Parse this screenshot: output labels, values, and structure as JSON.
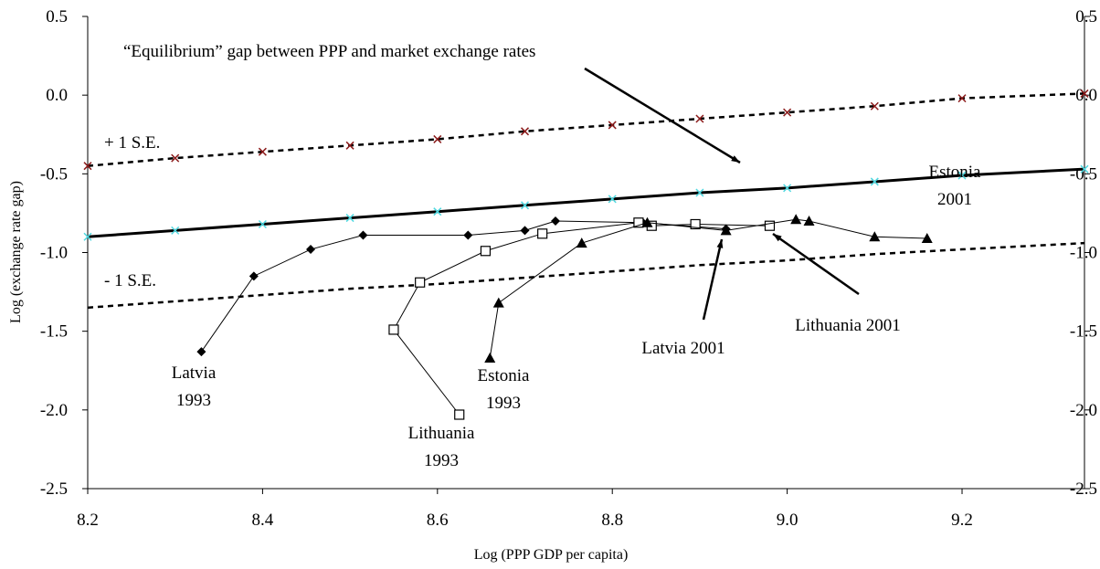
{
  "chart_data": {
    "type": "line",
    "xlabel": "Log (PPP GDP per capita)",
    "ylabel": "Log  (exchange rate gap)",
    "xlim": [
      8.2,
      9.34
    ],
    "ylim": [
      -2.5,
      0.5
    ],
    "xticks": [
      8.2,
      8.4,
      8.6,
      8.8,
      {
        "value": 9.0,
        "label": "9.0"
      },
      9.2
    ],
    "yticks": [
      0.5,
      {
        "value": 0,
        "label": "0.0"
      },
      -0.5,
      {
        "value": -1,
        "label": "-1.0"
      },
      -1.5,
      {
        "value": -2,
        "label": "-2.0"
      },
      -2.5
    ],
    "series": [
      {
        "x": [
          8.2,
          8.3,
          8.4,
          8.5,
          8.6,
          8.7,
          8.8,
          8.9,
          9.0,
          9.1,
          9.2,
          9.34
        ],
        "values": [
          -0.45,
          -0.4,
          -0.36,
          -0.32,
          -0.28,
          -0.23,
          -0.19,
          -0.15,
          -0.11,
          -0.07,
          -0.02,
          0.01
        ],
        "color": "#000000",
        "marker": "x",
        "marker_color": "#8b1a1a",
        "dash": true,
        "width": 2.5
      },
      {
        "x": [
          8.2,
          8.3,
          8.4,
          8.5,
          8.6,
          8.7,
          8.8,
          8.9,
          9.0,
          9.1,
          9.2,
          9.34
        ],
        "values": [
          -0.9,
          -0.86,
          -0.82,
          -0.78,
          -0.74,
          -0.7,
          -0.66,
          -0.62,
          -0.59,
          -0.55,
          -0.51,
          -0.47
        ],
        "color": "#000000",
        "marker": "x",
        "marker_color": "#4fd8e0",
        "dash": false,
        "width": 3
      },
      {
        "x": [
          8.2,
          8.3,
          8.4,
          8.5,
          8.6,
          8.7,
          8.8,
          8.9,
          9.0,
          9.1,
          9.2,
          9.34
        ],
        "values": [
          -1.35,
          -1.31,
          -1.27,
          -1.23,
          -1.2,
          -1.16,
          -1.12,
          -1.08,
          -1.05,
          -1.01,
          -0.98,
          -0.94
        ],
        "color": "#000000",
        "marker": "none",
        "marker_color": "#000000",
        "dash": true,
        "width": 2.5
      },
      {
        "x": [
          8.33,
          8.39,
          8.455,
          8.515,
          8.635,
          8.7,
          8.735,
          8.835,
          8.93
        ],
        "values": [
          -1.63,
          -1.15,
          -0.98,
          -0.89,
          -0.89,
          -0.86,
          -0.8,
          -0.81,
          -0.85
        ],
        "color": "#000000",
        "marker": "diamond",
        "marker_color": "#000000",
        "dash": false,
        "width": 1
      },
      {
        "x": [
          8.625,
          8.55,
          8.58,
          8.655,
          8.72,
          8.83,
          8.845,
          8.895,
          8.98
        ],
        "values": [
          -2.03,
          -1.49,
          -1.19,
          -0.99,
          -0.88,
          -0.81,
          -0.83,
          -0.82,
          -0.83
        ],
        "color": "#000000",
        "marker": "square",
        "marker_color": "#000000",
        "dash": false,
        "width": 1
      },
      {
        "x": [
          8.66,
          8.67,
          8.765,
          8.84,
          8.93,
          9.01,
          9.025,
          9.1,
          9.16
        ],
        "values": [
          -1.67,
          -1.32,
          -0.94,
          -0.81,
          -0.86,
          -0.79,
          -0.8,
          -0.9,
          -0.91
        ],
        "color": "#000000",
        "marker": "triangle",
        "marker_color": "#000000",
        "dash": false,
        "width": 1
      }
    ],
    "annotations": [
      [
        "“Equilibrium” gap between PPP and market exchange rates"
      ],
      [
        "+ 1 S.E."
      ],
      [
        "- 1 S.E."
      ],
      [
        "Latvia",
        "1993"
      ],
      [
        "Lithuania",
        "1993"
      ],
      [
        "Estonia",
        "1993"
      ],
      [
        "Latvia 2001"
      ],
      [
        "Lithuania 2001"
      ],
      [
        "Estonia",
        "2001"
      ]
    ]
  }
}
